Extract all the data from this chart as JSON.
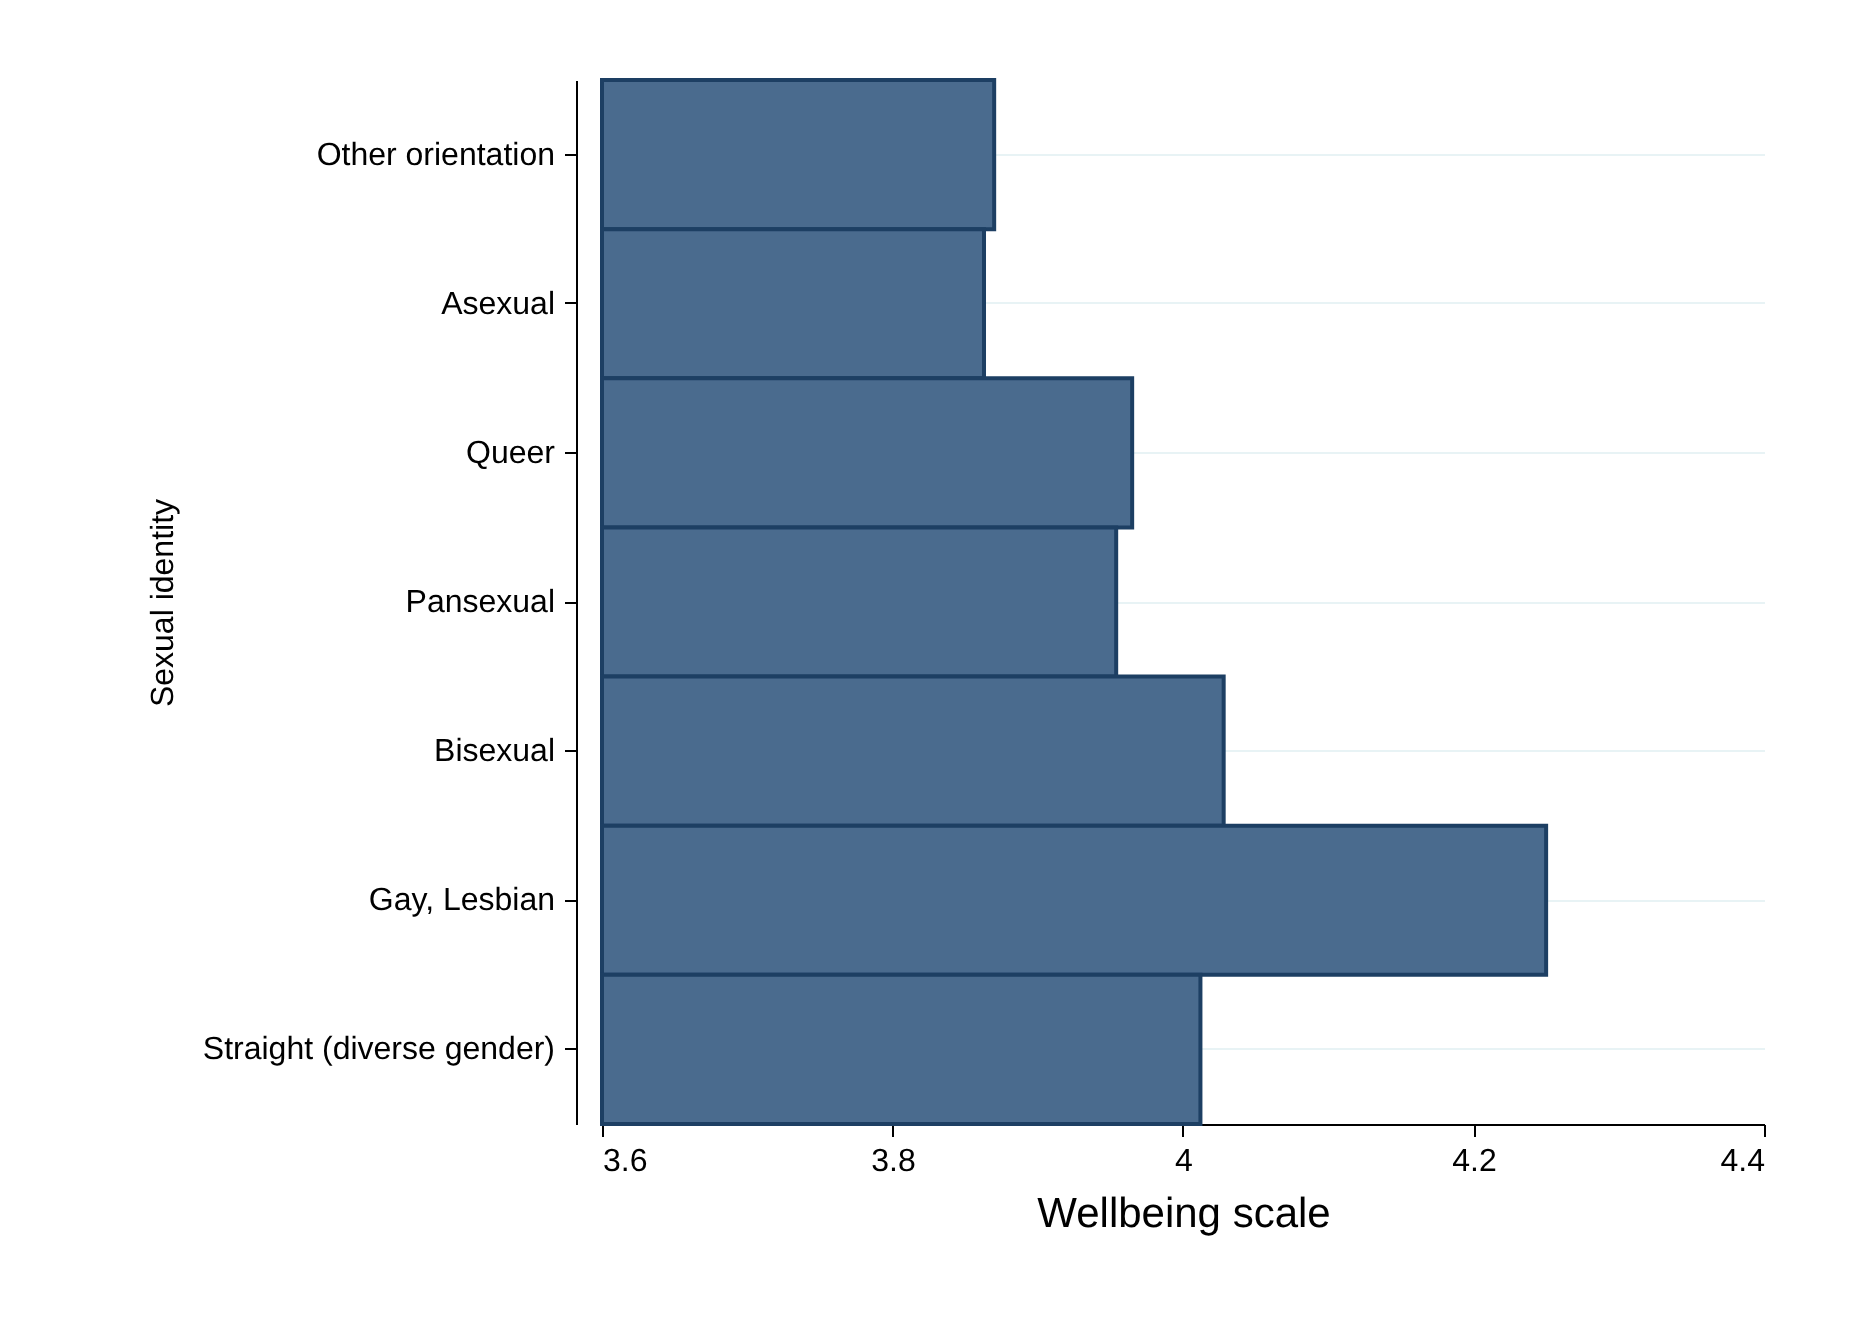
{
  "chart_data": {
    "type": "bar",
    "orientation": "horizontal",
    "xlabel": "Wellbeing scale",
    "ylabel": "Sexual identity",
    "categories": [
      "Other orientation",
      "Asexual",
      "Queer",
      "Pansexual",
      "Bisexual",
      "Gay, Lesbian",
      "Straight (diverse gender)"
    ],
    "values": [
      3.87,
      3.863,
      3.965,
      3.954,
      4.028,
      4.25,
      4.012
    ],
    "color": "#4a6b8e",
    "xlim": [
      3.6,
      4.4
    ],
    "xticks": [
      3.6,
      3.8,
      4,
      4.2,
      4.4
    ],
    "grid": "y"
  }
}
